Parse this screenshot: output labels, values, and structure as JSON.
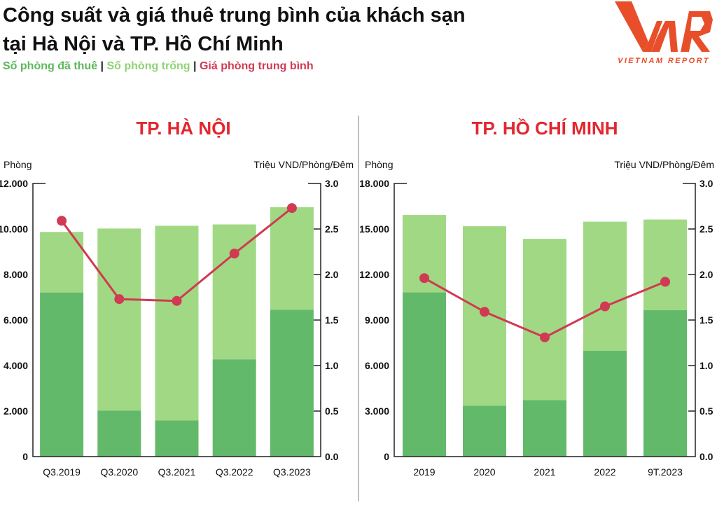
{
  "title_line1": "Công suất và giá thuê trung bình của khách sạn",
  "title_line2": "tại Hà Nội và TP. Hồ Chí Minh",
  "legend": {
    "occupied": "Số phòng đã thuê",
    "vacant": "Số phòng trống",
    "price": "Giá phòng trung bình",
    "separator": "|"
  },
  "logo": {
    "mark": "VNR",
    "text": "VIETNAM REPORT",
    "color": "#e84e2a"
  },
  "colors": {
    "occupied": "#63b96a",
    "vacant": "#a0d884",
    "price": "#d03a52",
    "panel_title": "#e3262f"
  },
  "chart_data": [
    {
      "type": "bar",
      "title": "TP. HÀ NỘI",
      "ylabel": "Phòng",
      "y2label": "Triệu VND/Phòng/Đêm",
      "categories": [
        "Q3.2019",
        "Q3.2020",
        "Q3.2021",
        "Q3.2022",
        "Q3.2023"
      ],
      "ylim": [
        0,
        12000
      ],
      "yticks": [
        "0",
        "2.000",
        "4.000",
        "6.000",
        "8.000",
        "10.000",
        "12.000"
      ],
      "y2lim": [
        0,
        3
      ],
      "y2ticks": [
        "0.0",
        "0.5",
        "1.0",
        "1.5",
        "2.0",
        "2.5",
        "3.0"
      ],
      "series": [
        {
          "name": "Số phòng đã thuê",
          "type": "stacked-bar",
          "values": [
            7210,
            2020,
            1590,
            4270,
            6450
          ]
        },
        {
          "name": "Số phòng trống",
          "type": "stacked-bar",
          "values": [
            2660,
            8000,
            8550,
            5930,
            4510
          ]
        },
        {
          "name": "Giá phòng trung bình",
          "type": "line",
          "axis": "right",
          "values": [
            2.59,
            1.73,
            1.71,
            2.23,
            2.73
          ]
        }
      ]
    },
    {
      "type": "bar",
      "title": "TP. HỒ CHÍ MINH",
      "ylabel": "Phòng",
      "y2label": "Triệu VND/Phòng/Đêm",
      "categories": [
        "2019",
        "2020",
        "2021",
        "2022",
        "9T.2023"
      ],
      "ylim": [
        0,
        18000
      ],
      "yticks": [
        "0",
        "3.000",
        "6.000",
        "9.000",
        "12.000",
        "15.000",
        "18.000"
      ],
      "y2lim": [
        0,
        3
      ],
      "y2ticks": [
        "0.0",
        "0.5",
        "1.0",
        "1.5",
        "2.0",
        "2.5",
        "3.0"
      ],
      "series": [
        {
          "name": "Số phòng đã thuê",
          "type": "stacked-bar",
          "values": [
            10820,
            3350,
            3720,
            6970,
            9650
          ]
        },
        {
          "name": "Số phòng trống",
          "type": "stacked-bar",
          "values": [
            5100,
            11830,
            10630,
            8510,
            5970
          ]
        },
        {
          "name": "Giá phòng trung bình",
          "type": "line",
          "axis": "right",
          "values": [
            1.96,
            1.59,
            1.31,
            1.65,
            1.92
          ]
        }
      ]
    }
  ]
}
